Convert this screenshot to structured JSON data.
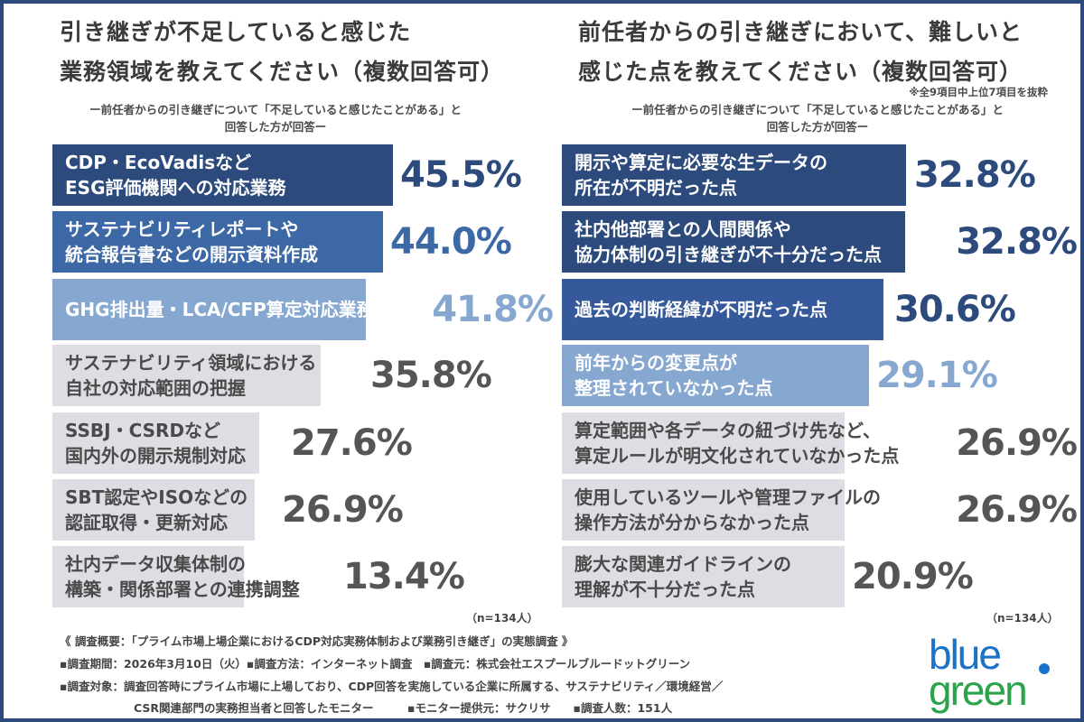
{
  "chart_data": [
    {
      "type": "bar",
      "orientation": "horizontal",
      "title": "引き継ぎが不足していると感じた\n業務領域を教えてください（複数回答可）",
      "subtitle": "ー前任者からの引き継ぎについて「不足していると感じたことがある」と\n回答した方が回答ー",
      "categories": [
        "CDP・EcoVadisなど\nESG評価機関への対応業務",
        "サステナビリティレポートや\n統合報告書などの開示資料作成",
        "GHG排出量・LCA/CFP算定対応業務",
        "サステナビリティ領域における\n自社の対応範囲の把握",
        "SSBJ・CSRDなど\n国内外の開示規制対応",
        "SBT認定やISOなどの\n認証取得・更新対応",
        "社内データ収集体制の\n構築・関係部署との連携調整"
      ],
      "values": [
        45.5,
        44.0,
        41.8,
        35.8,
        27.6,
        26.9,
        13.4
      ],
      "labels": [
        "45.5%",
        "44.0%",
        "41.8%",
        "35.8%",
        "27.6%",
        "26.9%",
        "13.4%"
      ],
      "sample": "（n=134人）",
      "unit": "%"
    },
    {
      "type": "bar",
      "orientation": "horizontal",
      "title": "前任者からの引き継ぎにおいて、難しいと\n感じた点を教えてください（複数回答可）",
      "note": "※全9項目中上位7項目を抜粋",
      "subtitle": "ー前任者からの引き継ぎについて「不足していると感じたことがある」と\n回答した方が回答ー",
      "categories": [
        "開示や算定に必要な生データの\n所在が不明だった点",
        "社内他部署との人間関係や\n協力体制の引き継ぎが不十分だった点",
        "過去の判断経緯が不明だった点",
        "前年からの変更点が\n整理されていなかった点",
        "算定範囲や各データの紐づけ先など、\n算定ルールが明文化されていなかった点",
        "使用しているツールや管理ファイルの\n操作方法が分からなかった点",
        "膨大な関連ガイドラインの\n理解が不十分だった点"
      ],
      "values": [
        32.8,
        32.8,
        30.6,
        29.1,
        26.9,
        26.9,
        20.9
      ],
      "labels": [
        "32.8%",
        "32.8%",
        "30.6%",
        "29.1%",
        "26.9%",
        "26.9%",
        "20.9%"
      ],
      "sample": "（n=134人）",
      "unit": "%"
    }
  ],
  "footer": {
    "line1": "《 調査概要：「プライム市場上場企業におけるCDP対応実務体制および業務引き継ぎ」の実態調査 》",
    "line2": "▪調査期間：2026年3月10日（火）▪調査方法：インターネット調査　▪調査元：株式会社エスプールブルードットグリーン",
    "line3": "▪調査対象：調査回答時にプライム市場に上場しており、CDP回答を実施している企業に所属する、サステナビリティ／環境経営／",
    "line4": "CSR関連部門の実務担当者と回答したモニター　　　▪モニター提供元：サクリサ　　▪調査人数：151人"
  },
  "logo": {
    "top": "blue",
    "bottom": "green"
  },
  "colors": {
    "navy": "#2c4a7c",
    "blue": "#3d68a6",
    "light": "#86a8d0",
    "gray": "#dedde3",
    "grayText": "#555555"
  }
}
